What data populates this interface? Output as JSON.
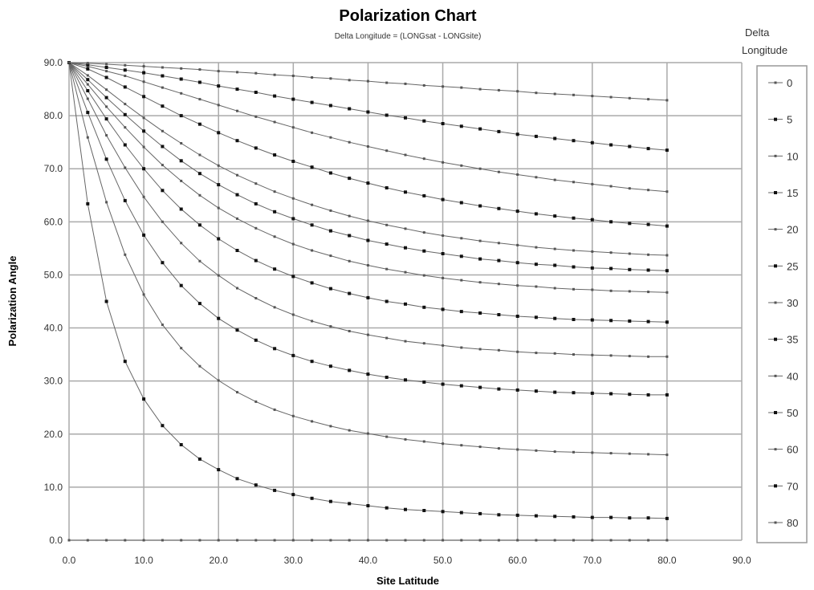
{
  "chart_data": {
    "type": "line",
    "title": "Polarization Chart",
    "subtitle": "Delta Longitude = (LONGsat - LONGsite)",
    "xlabel": "Site Latitude",
    "ylabel": "Polarization Angle",
    "xlim": [
      0,
      90
    ],
    "ylim": [
      0,
      90
    ],
    "xticks": [
      "0.0",
      "10.0",
      "20.0",
      "30.0",
      "40.0",
      "50.0",
      "60.0",
      "70.0",
      "80.0",
      "90.0"
    ],
    "yticks": [
      "0.0",
      "10.0",
      "20.0",
      "30.0",
      "40.0",
      "50.0",
      "60.0",
      "70.0",
      "80.0",
      "90.0"
    ],
    "grid": true,
    "legend_title": "Delta Longitude",
    "legend_position": "right",
    "x": [
      0,
      2.5,
      5,
      7.5,
      10,
      12.5,
      15,
      17.5,
      20,
      22.5,
      25,
      27.5,
      30,
      32.5,
      35,
      37.5,
      40,
      42.5,
      45,
      47.5,
      50,
      52.5,
      55,
      57.5,
      60,
      62.5,
      65,
      67.5,
      70,
      72.5,
      75,
      77.5,
      80
    ],
    "series": [
      {
        "name": "0",
        "values": [
          0,
          0,
          0,
          0,
          0,
          0,
          0,
          0,
          0,
          0,
          0,
          0,
          0,
          0,
          0,
          0,
          0,
          0,
          0,
          0,
          0,
          0,
          0,
          0,
          0,
          0,
          0,
          0,
          0,
          0,
          0,
          0,
          0
        ]
      },
      {
        "name": "5",
        "values": [
          90,
          63.4,
          45,
          33.7,
          26.6,
          21.6,
          18,
          15.3,
          13.3,
          11.6,
          10.4,
          9.4,
          8.6,
          7.9,
          7.3,
          6.9,
          6.5,
          6.1,
          5.8,
          5.6,
          5.4,
          5.2,
          5,
          4.8,
          4.7,
          4.6,
          4.5,
          4.4,
          4.3,
          4.3,
          4.2,
          4.2,
          4.1
        ]
      },
      {
        "name": "10",
        "values": [
          90,
          75.9,
          63.7,
          53.8,
          46.3,
          40.6,
          36.2,
          32.8,
          30.1,
          27.9,
          26.1,
          24.6,
          23.4,
          22.4,
          21.5,
          20.7,
          20.1,
          19.5,
          19,
          18.6,
          18.2,
          17.9,
          17.6,
          17.3,
          17.1,
          16.9,
          16.7,
          16.6,
          16.5,
          16.4,
          16.3,
          16.2,
          16.1
        ]
      },
      {
        "name": "15",
        "values": [
          90,
          80.6,
          71.8,
          64,
          57.5,
          52.3,
          48,
          44.6,
          41.8,
          39.6,
          37.7,
          36.1,
          34.8,
          33.7,
          32.8,
          32,
          31.3,
          30.7,
          30.2,
          29.8,
          29.4,
          29.1,
          28.8,
          28.5,
          28.3,
          28.1,
          27.9,
          27.8,
          27.7,
          27.6,
          27.5,
          27.4,
          27.4
        ]
      },
      {
        "name": "20",
        "values": [
          90,
          83.2,
          76.3,
          70.2,
          64.7,
          60,
          56,
          52.6,
          49.9,
          47.5,
          45.6,
          43.9,
          42.5,
          41.3,
          40.3,
          39.4,
          38.7,
          38.1,
          37.5,
          37.1,
          36.7,
          36.3,
          36,
          35.8,
          35.5,
          35.3,
          35.2,
          35,
          34.9,
          34.8,
          34.7,
          34.6,
          34.6
        ]
      },
      {
        "name": "25",
        "values": [
          90,
          84.7,
          79.4,
          74.5,
          70,
          65.9,
          62.4,
          59.4,
          56.8,
          54.6,
          52.7,
          51.1,
          49.7,
          48.5,
          47.4,
          46.5,
          45.7,
          45,
          44.5,
          43.9,
          43.5,
          43.1,
          42.8,
          42.5,
          42.2,
          42,
          41.8,
          41.6,
          41.5,
          41.4,
          41.3,
          41.2,
          41.1
        ]
      },
      {
        "name": "30",
        "values": [
          90,
          85.9,
          81.7,
          77.8,
          74.1,
          70.7,
          67.7,
          65,
          62.6,
          60.6,
          58.8,
          57.2,
          55.8,
          54.6,
          53.6,
          52.6,
          51.8,
          51.1,
          50.5,
          49.9,
          49.4,
          49,
          48.6,
          48.3,
          48,
          47.8,
          47.5,
          47.3,
          47.2,
          47,
          46.9,
          46.8,
          46.7
        ]
      },
      {
        "name": "35",
        "values": [
          90,
          86.8,
          83.4,
          80.2,
          77.1,
          74.2,
          71.5,
          69.1,
          67,
          65.1,
          63.4,
          61.9,
          60.6,
          59.4,
          58.3,
          57.4,
          56.5,
          55.8,
          55.1,
          54.5,
          54,
          53.5,
          53,
          52.7,
          52.3,
          52,
          51.8,
          51.5,
          51.3,
          51.2,
          51,
          50.9,
          50.8
        ]
      },
      {
        "name": "40",
        "values": [
          90,
          87.6,
          84.9,
          82.2,
          79.6,
          77.1,
          74.8,
          72.6,
          70.6,
          68.8,
          67.2,
          65.7,
          64.4,
          63.2,
          62.1,
          61.1,
          60.2,
          59.4,
          58.7,
          58,
          57.4,
          56.9,
          56.4,
          56,
          55.6,
          55.2,
          54.9,
          54.6,
          54.4,
          54.2,
          54,
          53.8,
          53.7
        ]
      },
      {
        "name": "50",
        "values": [
          90,
          88.8,
          87.2,
          85.4,
          83.6,
          81.8,
          80,
          78.4,
          76.8,
          75.3,
          73.9,
          72.6,
          71.4,
          70.3,
          69.2,
          68.2,
          67.3,
          66.4,
          65.6,
          64.9,
          64.2,
          63.6,
          63,
          62.5,
          62,
          61.5,
          61.1,
          60.7,
          60.4,
          60,
          59.7,
          59.5,
          59.2
        ]
      },
      {
        "name": "60",
        "values": [
          90,
          89.3,
          88.4,
          87.5,
          86.4,
          85.3,
          84.2,
          83.1,
          82,
          80.9,
          79.8,
          78.8,
          77.8,
          76.8,
          75.9,
          75,
          74.2,
          73.4,
          72.6,
          71.9,
          71.2,
          70.6,
          70,
          69.4,
          68.9,
          68.4,
          67.9,
          67.5,
          67.1,
          66.7,
          66.3,
          66,
          65.7
        ]
      },
      {
        "name": "70",
        "values": [
          90,
          89.6,
          89.1,
          88.6,
          88.1,
          87.5,
          86.9,
          86.3,
          85.6,
          85,
          84.4,
          83.7,
          83.1,
          82.5,
          81.9,
          81.3,
          80.7,
          80.1,
          79.6,
          79,
          78.5,
          78,
          77.5,
          77,
          76.5,
          76.1,
          75.7,
          75.3,
          74.9,
          74.5,
          74.2,
          73.8,
          73.5
        ]
      },
      {
        "name": "80",
        "values": [
          90,
          89.9,
          89.7,
          89.5,
          89.3,
          89.1,
          88.9,
          88.7,
          88.4,
          88.2,
          88,
          87.7,
          87.5,
          87.2,
          87,
          86.7,
          86.5,
          86.2,
          86,
          85.7,
          85.5,
          85.3,
          85,
          84.8,
          84.6,
          84.3,
          84.1,
          83.9,
          83.7,
          83.5,
          83.3,
          83.1,
          82.9
        ]
      }
    ]
  }
}
